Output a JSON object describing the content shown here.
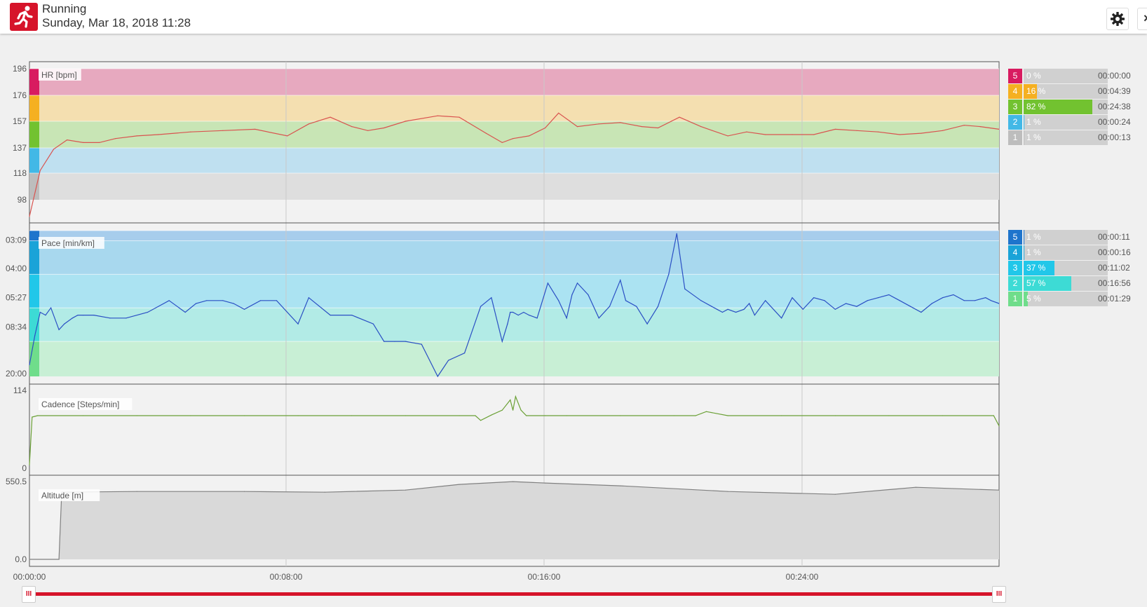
{
  "header": {
    "title": "Running",
    "date": "Sunday, Mar 18, 2018 11:28",
    "close_label": "×"
  },
  "colors": {
    "brand": "#d6142a",
    "hr_line": "#d9534f",
    "pace_line": "#2a4fc4",
    "cadence_line": "#6aa035",
    "altitude_fill": "#d9d9d9"
  },
  "chart_data": [
    {
      "type": "line",
      "title": "HR [bpm]",
      "y_ticks": [
        "196",
        "176",
        "157",
        "137",
        "118",
        "98"
      ],
      "ylim": [
        80,
        200
      ],
      "xlim": [
        0,
        1805
      ],
      "zones": [
        {
          "zone": "5",
          "from": 176,
          "to": 196,
          "color": "#e7a9bf",
          "bar": "#d81b60"
        },
        {
          "zone": "4",
          "from": 157,
          "to": 176,
          "color": "#f4dfb0",
          "bar": "#f5b021"
        },
        {
          "zone": "3",
          "from": 137,
          "to": 157,
          "color": "#c8e5b5",
          "bar": "#72c230"
        },
        {
          "zone": "2",
          "from": 118,
          "to": 137,
          "color": "#bfe0f0",
          "bar": "#42b8e6"
        },
        {
          "zone": "1",
          "from": 98,
          "to": 118,
          "color": "#dedede",
          "bar": "#bdbdbd"
        }
      ],
      "series": [
        {
          "x": [
            0,
            20,
            45,
            70,
            100,
            130,
            160,
            200,
            240,
            300,
            360,
            420,
            480,
            520,
            560,
            600,
            630,
            660,
            700,
            760,
            800,
            850,
            880,
            900,
            930,
            960,
            985,
            1020,
            1060,
            1100,
            1140,
            1170,
            1210,
            1250,
            1300,
            1335,
            1370,
            1420,
            1460,
            1500,
            1540,
            1580,
            1620,
            1660,
            1700,
            1740,
            1770,
            1805
          ],
          "values": [
            85,
            120,
            136,
            143,
            141,
            141,
            144,
            146,
            147,
            149,
            150,
            151,
            146,
            155,
            160,
            153,
            150,
            152,
            157,
            161,
            160,
            148,
            141,
            144,
            146,
            152,
            163,
            153,
            155,
            156,
            153,
            152,
            160,
            153,
            146,
            149,
            147,
            147,
            147,
            151,
            150,
            149,
            147,
            148,
            150,
            154,
            153,
            151
          ]
        }
      ]
    },
    {
      "type": "line",
      "title": "Pace [min/km]",
      "y_ticks": [
        "03:09",
        "04:00",
        "05:27",
        "08:34",
        "20:00"
      ],
      "ylim": [
        0,
        5
      ],
      "xlim": [
        0,
        1805
      ],
      "zones": [
        {
          "zone": "5",
          "from": 4.65,
          "to": 5,
          "color": "#a7cdec",
          "bar": "#1e74cc"
        },
        {
          "zone": "4",
          "from": 3.5,
          "to": 4.65,
          "color": "#a8d8ee",
          "bar": "#1aa3d8"
        },
        {
          "zone": "3",
          "from": 2.35,
          "to": 3.5,
          "color": "#abe3f2",
          "bar": "#21c7e9"
        },
        {
          "zone": "2",
          "from": 1.2,
          "to": 2.35,
          "color": "#b2ebe6",
          "bar": "#3ddbd5"
        },
        {
          "zone": "1",
          "from": 0,
          "to": 1.2,
          "color": "#c8efd5",
          "bar": "#6fdd8b"
        }
      ],
      "series": [
        {
          "x": [
            0,
            10,
            20,
            30,
            40,
            55,
            65,
            80,
            90,
            100,
            120,
            150,
            180,
            220,
            260,
            290,
            310,
            330,
            360,
            380,
            400,
            430,
            460,
            500,
            520,
            560,
            600,
            640,
            660,
            680,
            700,
            730,
            760,
            780,
            810,
            840,
            860,
            880,
            890,
            895,
            900,
            910,
            920,
            930,
            945,
            965,
            985,
            1000,
            1010,
            1020,
            1040,
            1060,
            1080,
            1100,
            1110,
            1130,
            1150,
            1170,
            1190,
            1205,
            1220,
            1250,
            1270,
            1280,
            1290,
            1300,
            1315,
            1330,
            1340,
            1350,
            1370,
            1400,
            1420,
            1440,
            1460,
            1480,
            1500,
            1520,
            1540,
            1560,
            1580,
            1600,
            1620,
            1640,
            1660,
            1680,
            1700,
            1720,
            1740,
            1760,
            1780,
            1790,
            1805
          ],
          "values": [
            0.4,
            1.4,
            2.2,
            2.1,
            2.35,
            1.6,
            1.8,
            2.0,
            2.1,
            2.1,
            2.1,
            2.0,
            2.0,
            2.2,
            2.6,
            2.2,
            2.5,
            2.6,
            2.6,
            2.5,
            2.3,
            2.6,
            2.6,
            1.8,
            2.7,
            2.1,
            2.1,
            1.8,
            1.2,
            1.2,
            1.2,
            1.1,
            0,
            0.55,
            0.8,
            2.4,
            2.7,
            1.2,
            1.8,
            2.2,
            2.2,
            2.1,
            2.2,
            2.1,
            2.0,
            3.2,
            2.6,
            2.0,
            2.8,
            3.2,
            2.8,
            2.0,
            2.4,
            3.3,
            2.6,
            2.4,
            1.8,
            2.4,
            3.5,
            4.9,
            3.0,
            2.6,
            2.4,
            2.3,
            2.2,
            2.3,
            2.2,
            2.3,
            2.5,
            2.1,
            2.6,
            2.0,
            2.7,
            2.3,
            2.7,
            2.6,
            2.3,
            2.5,
            2.4,
            2.6,
            2.7,
            2.8,
            2.6,
            2.4,
            2.2,
            2.5,
            2.7,
            2.8,
            2.6,
            2.6,
            2.7,
            2.6,
            2.5
          ]
        }
      ]
    },
    {
      "type": "line",
      "title": "Cadence [Steps/min]",
      "y_ticks": [
        "114",
        "0"
      ],
      "ylim": [
        0,
        114
      ],
      "xlim": [
        0,
        1805
      ],
      "series": [
        {
          "x": [
            0,
            5,
            15,
            100,
            200,
            300,
            400,
            500,
            600,
            700,
            800,
            830,
            840,
            860,
            880,
            895,
            900,
            905,
            915,
            925,
            960,
            1000,
            1100,
            1200,
            1240,
            1260,
            1300,
            1400,
            1500,
            1600,
            1700,
            1795,
            1805
          ],
          "values": [
            5,
            75,
            77,
            77,
            77,
            77,
            77,
            77,
            77,
            77,
            77,
            77,
            70,
            78,
            85,
            100,
            85,
            105,
            85,
            77,
            77,
            77,
            77,
            77,
            77,
            83,
            77,
            77,
            77,
            77,
            77,
            77,
            62
          ]
        }
      ]
    },
    {
      "type": "area",
      "title": "Altitude [m]",
      "y_ticks": [
        "550.5",
        "0.0"
      ],
      "ylim": [
        0,
        550.5
      ],
      "xlim": [
        0,
        1805
      ],
      "x_ticks": [
        "00:00:00",
        "00:08:00",
        "00:16:00",
        "00:24:00"
      ],
      "series": [
        {
          "x": [
            0,
            55,
            60,
            200,
            400,
            550,
            700,
            800,
            900,
            960,
            1100,
            1300,
            1500,
            1650,
            1805
          ],
          "values": [
            0,
            0,
            475,
            480,
            480,
            475,
            490,
            530,
            550,
            540,
            520,
            480,
            460,
            510,
            490
          ]
        }
      ]
    }
  ],
  "zone_tables": {
    "hr": [
      {
        "zone": "5",
        "pct": "0 %",
        "pct_value": 0,
        "time": "00:00:00",
        "color": "#d81b60"
      },
      {
        "zone": "4",
        "pct": "16 %",
        "pct_value": 16,
        "time": "00:04:39",
        "color": "#f5b021"
      },
      {
        "zone": "3",
        "pct": "82 %",
        "pct_value": 82,
        "time": "00:24:38",
        "color": "#72c230"
      },
      {
        "zone": "2",
        "pct": "1 %",
        "pct_value": 1,
        "time": "00:00:24",
        "color": "#42b8e6"
      },
      {
        "zone": "1",
        "pct": "1 %",
        "pct_value": 1,
        "time": "00:00:13",
        "color": "#bdbdbd"
      }
    ],
    "pace": [
      {
        "zone": "5",
        "pct": "1 %",
        "pct_value": 1,
        "time": "00:00:11",
        "color": "#1e74cc"
      },
      {
        "zone": "4",
        "pct": "1 %",
        "pct_value": 1,
        "time": "00:00:16",
        "color": "#1aa3d8"
      },
      {
        "zone": "3",
        "pct": "37 %",
        "pct_value": 37,
        "time": "00:11:02",
        "color": "#21c7e9"
      },
      {
        "zone": "2",
        "pct": "57 %",
        "pct_value": 57,
        "time": "00:16:56",
        "color": "#3ddbd5"
      },
      {
        "zone": "1",
        "pct": "5 %",
        "pct_value": 5,
        "time": "00:01:29",
        "color": "#6fdd8b"
      }
    ]
  },
  "slider": {
    "handle_label": "III",
    "range": [
      0,
      1
    ]
  }
}
